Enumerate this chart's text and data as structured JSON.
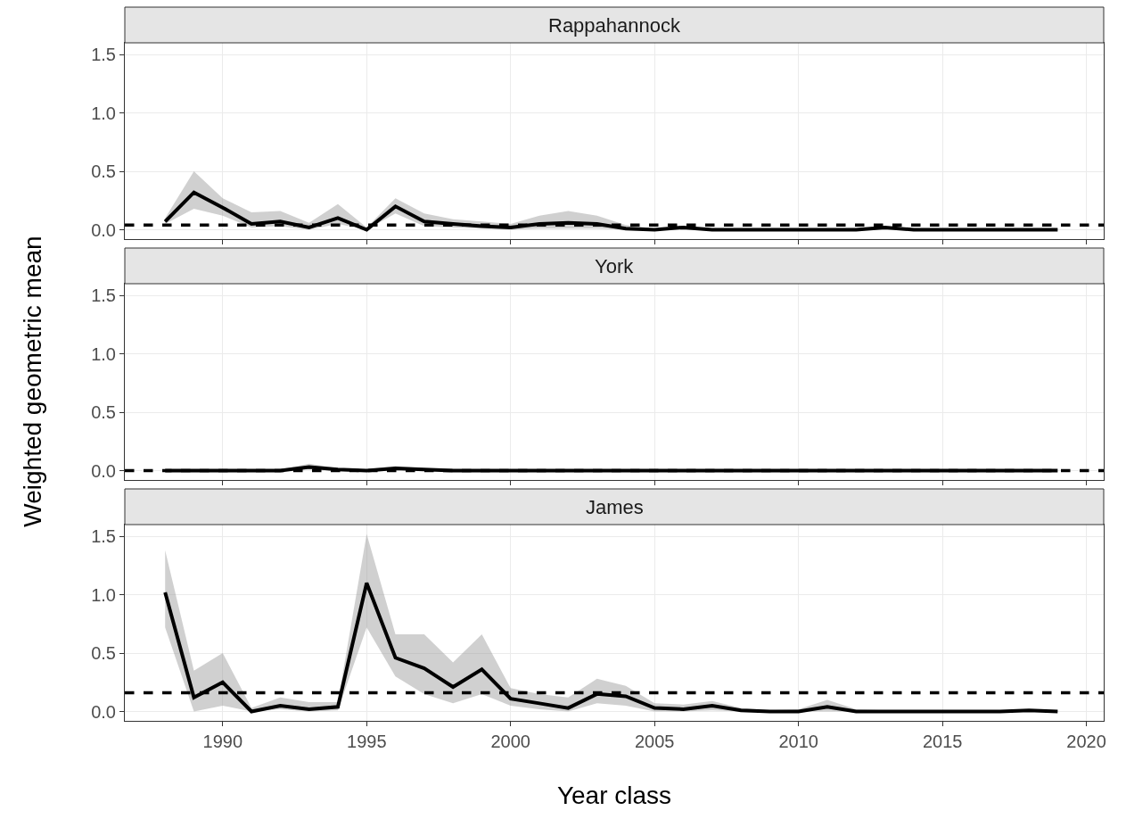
{
  "chart_data": [
    {
      "type": "line",
      "title": "Rappahannock",
      "x": [
        1988,
        1989,
        1990,
        1991,
        1992,
        1993,
        1994,
        1995,
        1996,
        1997,
        1998,
        1999,
        2000,
        2001,
        2002,
        2003,
        2004,
        2005,
        2006,
        2007,
        2008,
        2009,
        2010,
        2011,
        2012,
        2013,
        2014,
        2015,
        2016,
        2017,
        2018,
        2019
      ],
      "series": [
        {
          "color": "#000000",
          "values": [
            0.07,
            0.32,
            0.19,
            0.05,
            0.07,
            0.02,
            0.1,
            0.0,
            0.2,
            0.07,
            0.05,
            0.03,
            0.02,
            0.05,
            0.06,
            0.05,
            0.01,
            0.0,
            0.02,
            0.0,
            0.0,
            0.0,
            0.0,
            0.0,
            0.0,
            0.02,
            0.0,
            0.0,
            0.0,
            0.0,
            0.0,
            0.0
          ],
          "lower": [
            0.05,
            0.18,
            0.12,
            0.02,
            0.03,
            0.0,
            0.05,
            0.0,
            0.14,
            0.03,
            0.02,
            0.01,
            0.0,
            0.01,
            0.01,
            0.01,
            0.0,
            0.0,
            0.0,
            0.0,
            0.0,
            0.0,
            0.0,
            0.0,
            0.0,
            0.0,
            0.0,
            0.0,
            0.0,
            0.0,
            0.0,
            0.0
          ],
          "upper": [
            0.1,
            0.5,
            0.27,
            0.15,
            0.16,
            0.06,
            0.22,
            0.02,
            0.27,
            0.14,
            0.09,
            0.07,
            0.05,
            0.12,
            0.16,
            0.12,
            0.04,
            0.01,
            0.03,
            0.01,
            0.01,
            0.01,
            0.01,
            0.01,
            0.01,
            0.03,
            0.01,
            0.01,
            0.01,
            0.01,
            0.01,
            0.01
          ]
        }
      ],
      "ref_lines": [
        {
          "axis": "y",
          "value": 0.04,
          "line_style": "dashed"
        }
      ],
      "xlim": [
        1986.6,
        2020.6
      ],
      "ylim": [
        -0.08,
        1.6
      ],
      "xticks": [
        1990,
        1995,
        2000,
        2005,
        2010,
        2015,
        2020
      ],
      "yticks": [
        {
          "value": 0,
          "label": "0.0"
        },
        {
          "value": 0.5,
          "label": "0.5"
        },
        {
          "value": 1,
          "label": "1.0"
        },
        {
          "value": 1.5,
          "label": "1.5"
        }
      ],
      "grid": true,
      "tick_labels": "y",
      "line_style": "solid",
      "marker": "none"
    },
    {
      "type": "line",
      "title": "York",
      "ylabel": "Weighted geometric mean",
      "x": [
        1988,
        1989,
        1990,
        1991,
        1992,
        1993,
        1994,
        1995,
        1996,
        1997,
        1998,
        1999,
        2000,
        2001,
        2002,
        2003,
        2004,
        2005,
        2006,
        2007,
        2008,
        2009,
        2010,
        2011,
        2012,
        2013,
        2014,
        2015,
        2016,
        2017,
        2018,
        2019
      ],
      "series": [
        {
          "color": "#000000",
          "values": [
            0,
            0,
            0,
            0,
            0,
            0.03,
            0.01,
            0,
            0.02,
            0.01,
            0,
            0,
            0,
            0,
            0,
            0,
            0,
            0,
            0,
            0,
            0,
            0,
            0,
            0,
            0,
            0,
            0,
            0,
            0,
            0,
            0,
            0
          ],
          "lower": [
            0,
            0,
            0,
            0,
            0,
            0.01,
            0,
            0,
            0.01,
            0,
            0,
            0,
            0,
            0,
            0,
            0,
            0,
            0,
            0,
            0,
            0,
            0,
            0,
            0,
            0,
            0,
            0,
            0,
            0,
            0,
            0,
            0
          ],
          "upper": [
            0,
            0,
            0,
            0,
            0.01,
            0.06,
            0.02,
            0.01,
            0.04,
            0.02,
            0.01,
            0,
            0,
            0,
            0,
            0,
            0,
            0,
            0,
            0,
            0,
            0,
            0,
            0,
            0,
            0,
            0,
            0,
            0,
            0,
            0,
            0
          ]
        }
      ],
      "ref_lines": [
        {
          "axis": "y",
          "value": 0.0,
          "line_style": "dashed"
        }
      ],
      "xlim": [
        1986.6,
        2020.6
      ],
      "ylim": [
        -0.08,
        1.6
      ],
      "xticks": [
        1990,
        1995,
        2000,
        2005,
        2010,
        2015,
        2020
      ],
      "yticks": [
        {
          "value": 0,
          "label": "0.0"
        },
        {
          "value": 0.5,
          "label": "0.5"
        },
        {
          "value": 1,
          "label": "1.0"
        },
        {
          "value": 1.5,
          "label": "1.5"
        }
      ],
      "grid": true,
      "tick_labels": "y",
      "line_style": "solid",
      "marker": "none"
    },
    {
      "type": "line",
      "title": "James",
      "xlabel": "Year class",
      "x": [
        1988,
        1989,
        1990,
        1991,
        1992,
        1993,
        1994,
        1995,
        1996,
        1997,
        1998,
        1999,
        2000,
        2001,
        2002,
        2003,
        2004,
        2005,
        2006,
        2007,
        2008,
        2009,
        2010,
        2011,
        2012,
        2013,
        2014,
        2015,
        2016,
        2017,
        2018,
        2019
      ],
      "series": [
        {
          "color": "#000000",
          "values": [
            1.02,
            0.12,
            0.25,
            0.0,
            0.05,
            0.02,
            0.04,
            1.1,
            0.46,
            0.37,
            0.21,
            0.36,
            0.11,
            0.07,
            0.03,
            0.15,
            0.13,
            0.03,
            0.02,
            0.05,
            0.01,
            0.0,
            0.0,
            0.04,
            0.0,
            0.0,
            0.0,
            0.0,
            0.0,
            0.0,
            0.01,
            0.0
          ],
          "lower": [
            0.72,
            0.0,
            0.05,
            0.0,
            0.02,
            0.0,
            0.01,
            0.72,
            0.3,
            0.15,
            0.07,
            0.15,
            0.05,
            0.02,
            0.0,
            0.07,
            0.05,
            0.0,
            0.0,
            0.01,
            0.0,
            0.0,
            0.0,
            0.0,
            0.0,
            0.0,
            0.0,
            0.0,
            0.0,
            0.0,
            0.0,
            0.0
          ],
          "upper": [
            1.38,
            0.35,
            0.5,
            0.03,
            0.12,
            0.08,
            0.08,
            1.52,
            0.66,
            0.66,
            0.42,
            0.66,
            0.2,
            0.15,
            0.12,
            0.28,
            0.22,
            0.07,
            0.06,
            0.09,
            0.03,
            0.01,
            0.02,
            0.1,
            0.02,
            0.01,
            0.01,
            0.01,
            0.01,
            0.01,
            0.02,
            0.01
          ]
        }
      ],
      "ref_lines": [
        {
          "axis": "y",
          "value": 0.16,
          "line_style": "dashed"
        }
      ],
      "xlim": [
        1986.6,
        2020.6
      ],
      "ylim": [
        -0.08,
        1.6
      ],
      "xticks": [
        1990,
        1995,
        2000,
        2005,
        2010,
        2015,
        2020
      ],
      "yticks": [
        {
          "value": 0,
          "label": "0.0"
        },
        {
          "value": 0.5,
          "label": "0.5"
        },
        {
          "value": 1,
          "label": "1.0"
        },
        {
          "value": 1.5,
          "label": "1.5"
        }
      ],
      "grid": true,
      "line_style": "solid",
      "marker": "none"
    }
  ]
}
